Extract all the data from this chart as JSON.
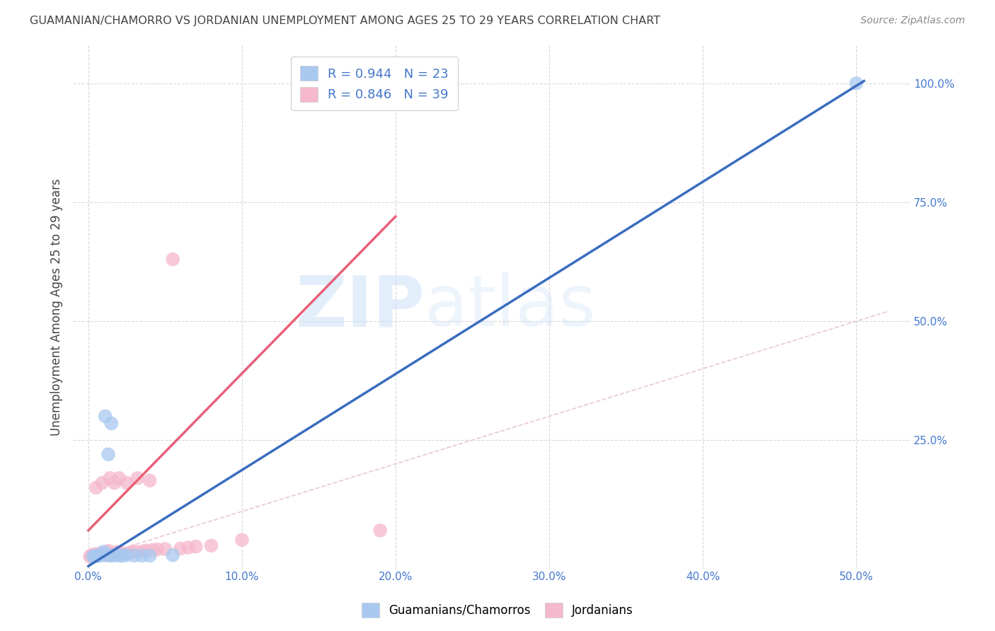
{
  "title": "GUAMANIAN/CHAMORRO VS JORDANIAN UNEMPLOYMENT AMONG AGES 25 TO 29 YEARS CORRELATION CHART",
  "source": "Source: ZipAtlas.com",
  "xlabel_ticks": [
    "0.0%",
    "10.0%",
    "20.0%",
    "30.0%",
    "40.0%",
    "50.0%"
  ],
  "xlabel_vals": [
    0.0,
    0.1,
    0.2,
    0.3,
    0.4,
    0.5
  ],
  "ylabel_ticks": [
    "100.0%",
    "75.0%",
    "50.0%",
    "25.0%"
  ],
  "ylabel_vals": [
    1.0,
    0.75,
    0.5,
    0.25
  ],
  "ylabel_label": "Unemployment Among Ages 25 to 29 years",
  "xlim": [
    -0.01,
    0.535
  ],
  "ylim": [
    -0.02,
    1.08
  ],
  "guamanian_R": 0.944,
  "guamanian_N": 23,
  "jordanian_R": 0.846,
  "jordanian_N": 39,
  "guamanian_color": "#a8c8f0",
  "guamanian_line_color": "#3a6dbf",
  "jordanian_color": "#f5b8cc",
  "jordanian_line_color": "#e8607a",
  "legend_label_1": "Guamanians/Chamorros",
  "legend_label_2": "Jordanians",
  "watermark_zip": "ZIP",
  "watermark_atlas": "atlas",
  "background_color": "#ffffff",
  "grid_color": "#d8d8d8",
  "title_color": "#444444",
  "axis_label_color": "#4477cc",
  "ref_line_color": "#e8c8d0",
  "guamanian_x": [
    0.003,
    0.004,
    0.005,
    0.006,
    0.007,
    0.008,
    0.009,
    0.01,
    0.011,
    0.012,
    0.013,
    0.014,
    0.015,
    0.016,
    0.017,
    0.02,
    0.022,
    0.025,
    0.03,
    0.035,
    0.04,
    0.055,
    0.5
  ],
  "guamanian_y": [
    0.005,
    0.006,
    0.007,
    0.006,
    0.007,
    0.008,
    0.009,
    0.015,
    0.3,
    0.008,
    0.22,
    0.007,
    0.285,
    0.008,
    0.008,
    0.007,
    0.007,
    0.008,
    0.007,
    0.007,
    0.007,
    0.008,
    1.0
  ],
  "jordanian_x": [
    0.001,
    0.002,
    0.003,
    0.004,
    0.005,
    0.005,
    0.006,
    0.007,
    0.008,
    0.009,
    0.01,
    0.011,
    0.012,
    0.013,
    0.014,
    0.015,
    0.016,
    0.017,
    0.018,
    0.019,
    0.02,
    0.022,
    0.025,
    0.028,
    0.03,
    0.032,
    0.035,
    0.038,
    0.04,
    0.042,
    0.045,
    0.05,
    0.055,
    0.06,
    0.065,
    0.07,
    0.08,
    0.1,
    0.19
  ],
  "jordanian_y": [
    0.005,
    0.008,
    0.006,
    0.01,
    0.008,
    0.15,
    0.008,
    0.01,
    0.012,
    0.16,
    0.008,
    0.01,
    0.012,
    0.017,
    0.17,
    0.01,
    0.012,
    0.16,
    0.013,
    0.015,
    0.17,
    0.012,
    0.16,
    0.014,
    0.016,
    0.17,
    0.016,
    0.018,
    0.165,
    0.019,
    0.02,
    0.021,
    0.63,
    0.022,
    0.024,
    0.026,
    0.028,
    0.04,
    0.06
  ],
  "reg_line_guamanian_x0": 0.0,
  "reg_line_guamanian_y0": -0.015,
  "reg_line_guamanian_x1": 0.505,
  "reg_line_guamanian_y1": 1.005,
  "reg_line_jordanian_x0": 0.0,
  "reg_line_jordanian_y0": 0.06,
  "reg_line_jordanian_x1": 0.2,
  "reg_line_jordanian_y1": 0.72
}
